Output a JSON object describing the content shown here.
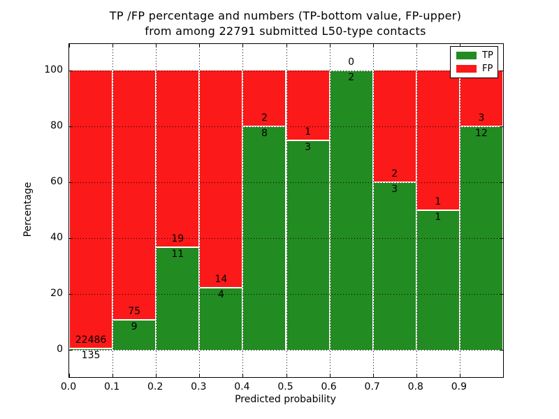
{
  "figure": {
    "title_line1": "TP /FP percentage and numbers (TP-bottom value, FP-upper)",
    "title_line2": "from among 22791 submitted L50-type contacts",
    "xlabel": "Predicted probability",
    "ylabel": "Percentage"
  },
  "legend": {
    "items": [
      {
        "label": "TP",
        "color": "#228b22"
      },
      {
        "label": "FP",
        "color": "#fb1919"
      }
    ]
  },
  "chart_data": {
    "type": "bar",
    "stacked": true,
    "title": "TP /FP percentage and numbers (TP-bottom value, FP-upper) from among 22791 submitted L50-type contacts",
    "xlabel": "Predicted probability",
    "ylabel": "Percentage",
    "total_contacts": 22791,
    "bin_width": 0.1,
    "bin_starts": [
      0.0,
      0.1,
      0.2,
      0.3,
      0.4,
      0.5,
      0.6,
      0.7,
      0.8,
      0.9
    ],
    "xtick_labels": [
      "0.0",
      "0.1",
      "0.2",
      "0.3",
      "0.4",
      "0.5",
      "0.6",
      "0.7",
      "0.8",
      "0.9"
    ],
    "ytick_labels": [
      "0",
      "20",
      "40",
      "60",
      "80",
      "100"
    ],
    "ytick_values": [
      0,
      20,
      40,
      60,
      80,
      100
    ],
    "xlim": [
      0.0,
      1.0
    ],
    "ylim": [
      -10,
      110
    ],
    "grid": true,
    "legend_position": "upper right",
    "series": [
      {
        "name": "TP",
        "color": "#228b22",
        "counts": [
          135,
          9,
          11,
          4,
          8,
          3,
          2,
          3,
          1,
          12
        ],
        "percent": [
          0.6,
          10.71,
          36.67,
          22.22,
          80,
          75,
          100,
          60,
          50,
          80
        ]
      },
      {
        "name": "FP",
        "color": "#fb1919",
        "counts": [
          22486,
          75,
          19,
          14,
          2,
          1,
          0,
          2,
          1,
          3
        ],
        "percent": [
          99.4,
          89.29,
          63.33,
          77.78,
          20,
          25,
          0,
          40,
          50,
          20
        ]
      }
    ]
  }
}
